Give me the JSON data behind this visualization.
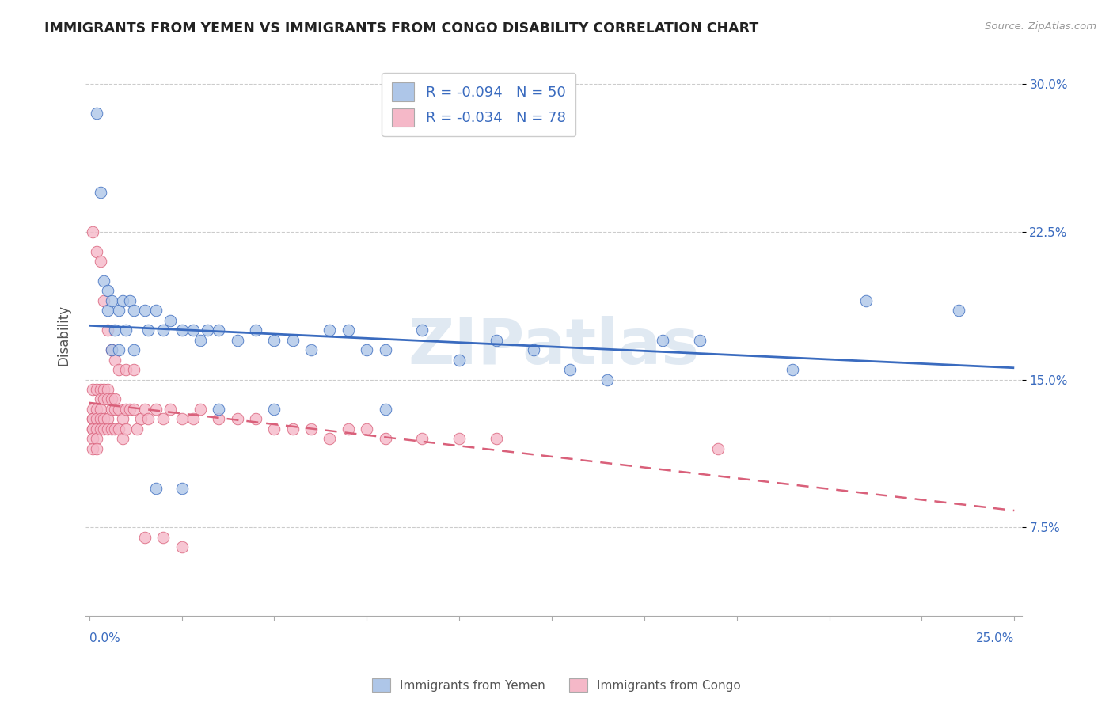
{
  "title": "IMMIGRANTS FROM YEMEN VS IMMIGRANTS FROM CONGO DISABILITY CORRELATION CHART",
  "source": "Source: ZipAtlas.com",
  "ylabel": "Disability",
  "xlim": [
    -0.001,
    0.252
  ],
  "ylim": [
    0.03,
    0.315
  ],
  "yticks": [
    0.075,
    0.15,
    0.225,
    0.3
  ],
  "ytick_labels": [
    "7.5%",
    "15.0%",
    "22.5%",
    "30.0%"
  ],
  "legend_labels": [
    "Immigrants from Yemen",
    "Immigrants from Congo"
  ],
  "R_yemen": -0.094,
  "N_yemen": 50,
  "R_congo": -0.034,
  "N_congo": 78,
  "color_yemen": "#aec6e8",
  "color_congo": "#f5b8c8",
  "line_color_yemen": "#3a6bbf",
  "line_color_congo": "#d9607a",
  "background_color": "#ffffff",
  "watermark": "ZIPatlas",
  "yemen_x": [
    0.002,
    0.004,
    0.005,
    0.005,
    0.006,
    0.007,
    0.008,
    0.009,
    0.01,
    0.011,
    0.012,
    0.015,
    0.016,
    0.018,
    0.02,
    0.022,
    0.025,
    0.028,
    0.03,
    0.032,
    0.035,
    0.04,
    0.045,
    0.05,
    0.055,
    0.06,
    0.065,
    0.07,
    0.075,
    0.08,
    0.09,
    0.1,
    0.11,
    0.12,
    0.13,
    0.14,
    0.155,
    0.165,
    0.19,
    0.21,
    0.003,
    0.006,
    0.008,
    0.012,
    0.018,
    0.025,
    0.035,
    0.05,
    0.08,
    0.235
  ],
  "yemen_y": [
    0.285,
    0.2,
    0.195,
    0.185,
    0.19,
    0.175,
    0.185,
    0.19,
    0.175,
    0.19,
    0.185,
    0.185,
    0.175,
    0.185,
    0.175,
    0.18,
    0.175,
    0.175,
    0.17,
    0.175,
    0.175,
    0.17,
    0.175,
    0.17,
    0.17,
    0.165,
    0.175,
    0.175,
    0.165,
    0.165,
    0.175,
    0.16,
    0.17,
    0.165,
    0.155,
    0.15,
    0.17,
    0.17,
    0.155,
    0.19,
    0.245,
    0.165,
    0.165,
    0.165,
    0.095,
    0.095,
    0.135,
    0.135,
    0.135,
    0.185
  ],
  "congo_x": [
    0.001,
    0.001,
    0.001,
    0.001,
    0.001,
    0.001,
    0.001,
    0.001,
    0.002,
    0.002,
    0.002,
    0.002,
    0.002,
    0.002,
    0.003,
    0.003,
    0.003,
    0.003,
    0.003,
    0.004,
    0.004,
    0.004,
    0.004,
    0.005,
    0.005,
    0.005,
    0.005,
    0.006,
    0.006,
    0.006,
    0.007,
    0.007,
    0.007,
    0.008,
    0.008,
    0.009,
    0.009,
    0.01,
    0.01,
    0.011,
    0.012,
    0.013,
    0.014,
    0.015,
    0.016,
    0.018,
    0.02,
    0.022,
    0.025,
    0.028,
    0.03,
    0.035,
    0.04,
    0.045,
    0.05,
    0.055,
    0.06,
    0.065,
    0.07,
    0.075,
    0.08,
    0.09,
    0.1,
    0.11,
    0.001,
    0.002,
    0.003,
    0.004,
    0.005,
    0.006,
    0.007,
    0.008,
    0.01,
    0.012,
    0.015,
    0.02,
    0.025,
    0.17
  ],
  "congo_y": [
    0.145,
    0.135,
    0.13,
    0.125,
    0.13,
    0.125,
    0.12,
    0.115,
    0.145,
    0.135,
    0.13,
    0.125,
    0.12,
    0.115,
    0.145,
    0.14,
    0.135,
    0.13,
    0.125,
    0.145,
    0.14,
    0.13,
    0.125,
    0.145,
    0.14,
    0.13,
    0.125,
    0.14,
    0.135,
    0.125,
    0.14,
    0.135,
    0.125,
    0.135,
    0.125,
    0.13,
    0.12,
    0.135,
    0.125,
    0.135,
    0.135,
    0.125,
    0.13,
    0.135,
    0.13,
    0.135,
    0.13,
    0.135,
    0.13,
    0.13,
    0.135,
    0.13,
    0.13,
    0.13,
    0.125,
    0.125,
    0.125,
    0.12,
    0.125,
    0.125,
    0.12,
    0.12,
    0.12,
    0.12,
    0.225,
    0.215,
    0.21,
    0.19,
    0.175,
    0.165,
    0.16,
    0.155,
    0.155,
    0.155,
    0.07,
    0.07,
    0.065,
    0.115
  ]
}
